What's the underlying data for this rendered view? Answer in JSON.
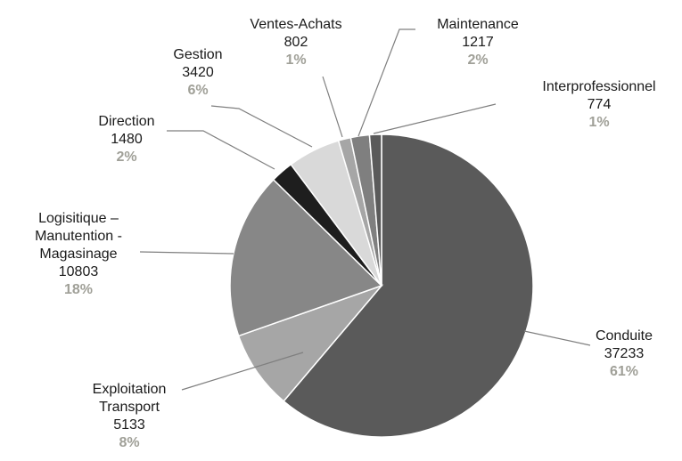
{
  "chart_data": {
    "type": "pie",
    "categories": [
      "Conduite",
      "Exploitation Transport",
      "Logisitique – Manutention - Magasinage",
      "Direction",
      "Gestion",
      "Ventes-Achats",
      "Maintenance",
      "Interprofessionnel"
    ],
    "values": [
      37233,
      5133,
      10803,
      1480,
      3420,
      802,
      1217,
      774
    ],
    "percentages": [
      {
        "value": 61,
        "label": "61%"
      },
      {
        "value": 8,
        "label": "8%"
      },
      {
        "value": 18,
        "label": "18%"
      },
      {
        "value": 2,
        "label": "2%"
      },
      {
        "value": 6,
        "label": "6%"
      },
      {
        "value": 1,
        "label": "1%"
      },
      {
        "value": 2,
        "label": "2%"
      },
      {
        "value": 1,
        "label": "1%"
      }
    ],
    "colors": [
      "#5a5a5a",
      "#a6a6a6",
      "#878787",
      "#1e1e1e",
      "#d9d9d9",
      "#a6a6a6",
      "#7f7f7f",
      "#5a5a5a"
    ],
    "start_angle": 0,
    "direction": "clockwise"
  }
}
